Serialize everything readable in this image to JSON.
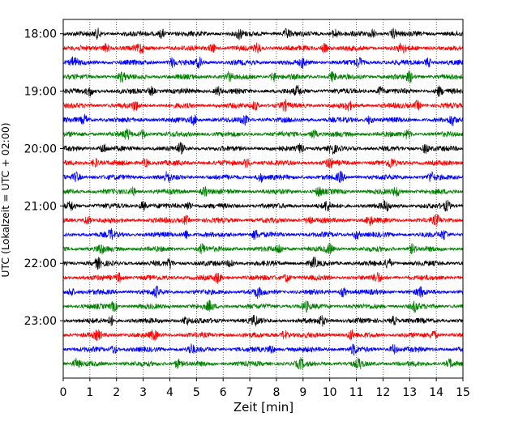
{
  "chart_data": {
    "type": "line",
    "title": "",
    "xlabel": "Zeit  [min]",
    "ylabel": "UTC (Lokalzeit = UTC + 02:00)",
    "xlim": [
      0,
      15
    ],
    "xticks": [
      "0",
      "1",
      "2",
      "3",
      "4",
      "5",
      "6",
      "7",
      "8",
      "9",
      "10",
      "11",
      "12",
      "13",
      "14",
      "15"
    ],
    "ylim_hours": [
      17.75,
      24.0
    ],
    "yticks": [
      {
        "hour": 18,
        "label": "18:00"
      },
      {
        "hour": 19,
        "label": "19:00"
      },
      {
        "hour": 20,
        "label": "20:00"
      },
      {
        "hour": 21,
        "label": "21:00"
      },
      {
        "hour": 22,
        "label": "22:00"
      },
      {
        "hour": 23,
        "label": "23:00"
      }
    ],
    "grid": "vertical dotted lines at each minute",
    "trace_interval_minutes": 15,
    "trace_colors": [
      "#000000",
      "#ff0000",
      "#0000ff",
      "#008000"
    ],
    "traces": [
      {
        "start": "18:00",
        "color": "#000000",
        "bursts": [
          1.3,
          3.7,
          6.6,
          8.4,
          10.2,
          11.6,
          12.4
        ]
      },
      {
        "start": "18:15",
        "color": "#ff0000",
        "bursts": [
          1.6,
          2.9,
          5.6,
          7.3,
          9.8,
          12.7
        ]
      },
      {
        "start": "18:30",
        "color": "#0000ff",
        "bursts": [
          0.4,
          4.1,
          5.1,
          9.0,
          11.1,
          13.7
        ]
      },
      {
        "start": "18:45",
        "color": "#008000",
        "bursts": [
          2.2,
          6.2,
          7.9,
          10.1,
          13.0
        ]
      },
      {
        "start": "19:00",
        "color": "#000000",
        "bursts": [
          1.0,
          3.3,
          5.8,
          8.8,
          11.9,
          14.1
        ]
      },
      {
        "start": "19:15",
        "color": "#ff0000",
        "bursts": [
          2.7,
          7.2,
          8.3,
          10.7,
          13.3
        ]
      },
      {
        "start": "19:30",
        "color": "#0000ff",
        "bursts": [
          0.8,
          4.9,
          6.8,
          11.5,
          14.6
        ]
      },
      {
        "start": "19:45",
        "color": "#008000",
        "bursts": [
          2.4,
          3.0,
          9.4,
          12.9
        ]
      },
      {
        "start": "20:00",
        "color": "#000000",
        "bursts": [
          1.5,
          4.4,
          8.9,
          10.1,
          13.6
        ]
      },
      {
        "start": "20:15",
        "color": "#ff0000",
        "bursts": [
          1.2,
          3.1,
          6.9,
          10.0,
          12.3
        ]
      },
      {
        "start": "20:30",
        "color": "#0000ff",
        "bursts": [
          0.5,
          3.9,
          7.4,
          10.4,
          13.8
        ]
      },
      {
        "start": "20:45",
        "color": "#008000",
        "bursts": [
          2.6,
          5.3,
          9.6,
          12.5
        ]
      },
      {
        "start": "21:00",
        "color": "#000000",
        "bursts": [
          0.3,
          3.0,
          4.7,
          9.9,
          12.1,
          14.4
        ]
      },
      {
        "start": "21:15",
        "color": "#ff0000",
        "bursts": [
          0.9,
          4.6,
          9.2,
          11.5,
          14.0
        ]
      },
      {
        "start": "21:30",
        "color": "#0000ff",
        "bursts": [
          1.8,
          4.6,
          7.2,
          11.0,
          14.3
        ]
      },
      {
        "start": "21:45",
        "color": "#008000",
        "bursts": [
          1.4,
          5.2,
          8.1,
          10.0,
          13.1
        ]
      },
      {
        "start": "22:00",
        "color": "#000000",
        "bursts": [
          1.3,
          4.0,
          6.3,
          9.4,
          12.2
        ]
      },
      {
        "start": "22:15",
        "color": "#ff0000",
        "bursts": [
          2.1,
          5.8,
          8.4,
          11.8
        ]
      },
      {
        "start": "22:30",
        "color": "#0000ff",
        "bursts": [
          0.3,
          3.5,
          7.3,
          10.5,
          13.4
        ]
      },
      {
        "start": "22:45",
        "color": "#008000",
        "bursts": [
          1.9,
          5.5,
          9.1,
          13.2
        ]
      },
      {
        "start": "23:00",
        "color": "#000000",
        "bursts": [
          1.8,
          4.6,
          7.2,
          9.7,
          12.4
        ]
      },
      {
        "start": "23:15",
        "color": "#ff0000",
        "bursts": [
          1.3,
          3.4,
          8.3,
          10.8,
          13.9
        ]
      },
      {
        "start": "23:30",
        "color": "#0000ff",
        "bursts": [
          1.9,
          4.8,
          7.8,
          10.9,
          12.4
        ]
      },
      {
        "start": "23:45",
        "color": "#008000",
        "bursts": [
          0.5,
          4.3,
          8.9,
          11.1,
          14.5
        ]
      }
    ]
  }
}
